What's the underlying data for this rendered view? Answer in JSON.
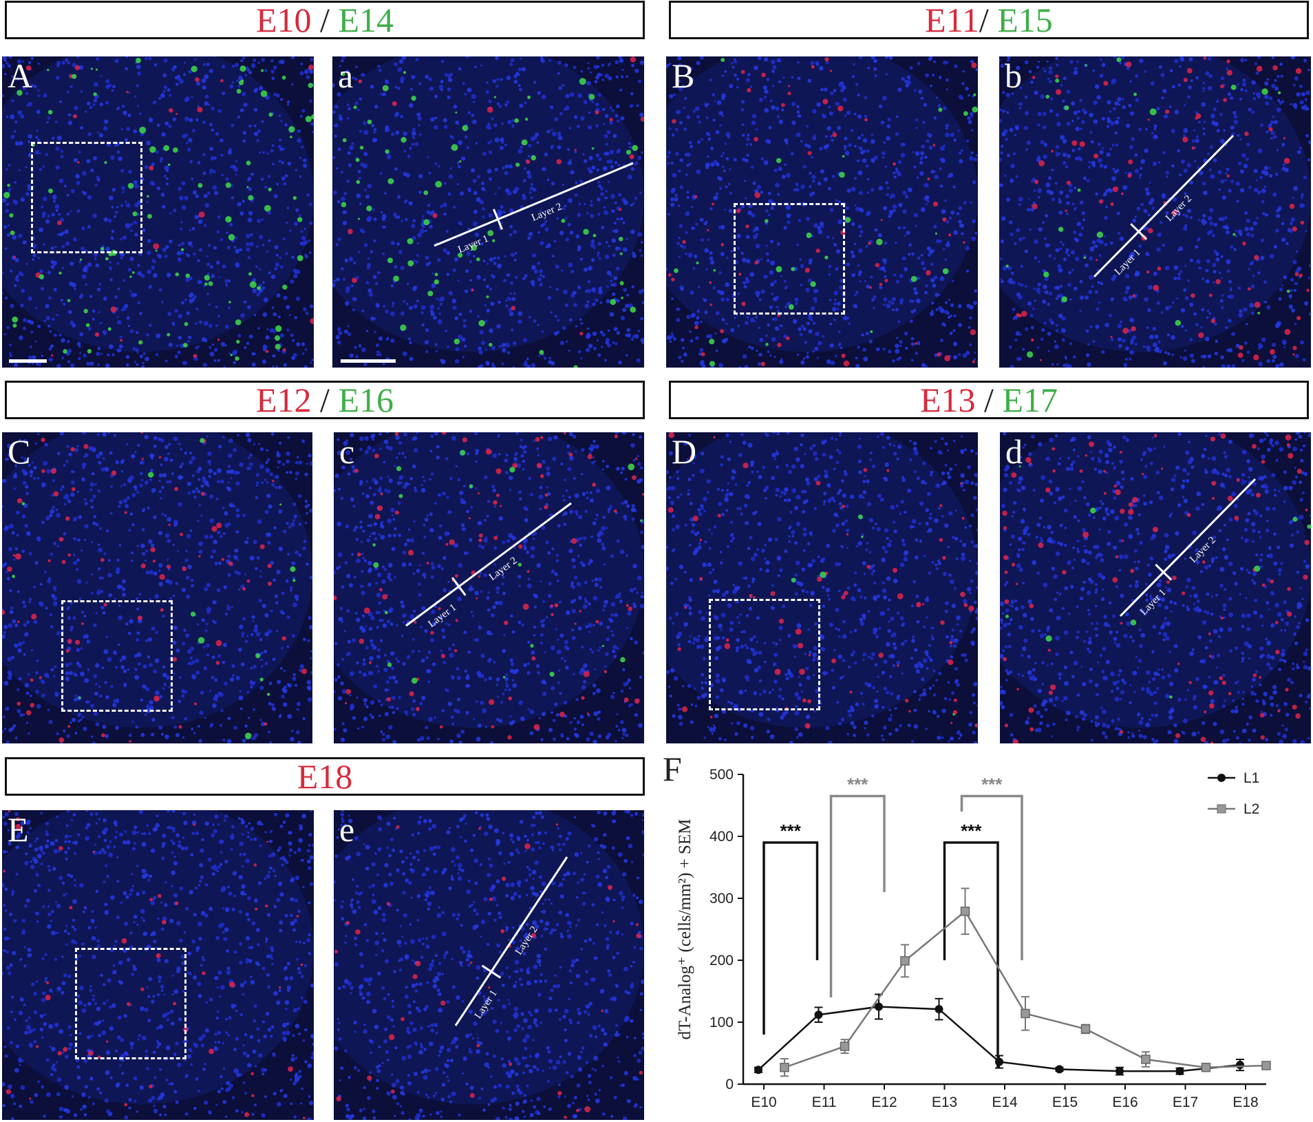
{
  "headers": [
    {
      "red": "E10",
      "sep": " / ",
      "green": "E14"
    },
    {
      "red": "E11",
      "sep": "/ ",
      "green": "E15"
    },
    {
      "red": "E12",
      "sep": " / ",
      "green": "E16"
    },
    {
      "red": "E13",
      "sep": " / ",
      "green": "E17"
    },
    {
      "red": "E18",
      "sep": "",
      "green": ""
    }
  ],
  "panels": [
    {
      "label": "A",
      "seed": 11,
      "green": 0.5,
      "red": 0.15
    },
    {
      "label": "a",
      "seed": 12,
      "green": 0.35,
      "red": 0.1
    },
    {
      "label": "B",
      "seed": 21,
      "green": 0.15,
      "red": 0.35
    },
    {
      "label": "b",
      "seed": 22,
      "green": 0.12,
      "red": 0.45
    },
    {
      "label": "C",
      "seed": 31,
      "green": 0.08,
      "red": 0.4
    },
    {
      "label": "c",
      "seed": 32,
      "green": 0.1,
      "red": 0.5
    },
    {
      "label": "D",
      "seed": 41,
      "green": 0.03,
      "red": 0.35
    },
    {
      "label": "d",
      "seed": 42,
      "green": 0.05,
      "red": 0.55
    },
    {
      "label": "E",
      "seed": 51,
      "green": 0.0,
      "red": 0.25
    },
    {
      "label": "e",
      "seed": 52,
      "green": 0.0,
      "red": 0.2
    }
  ],
  "layer_labels": {
    "l1": "Layer 1",
    "l2": "Layer 2"
  },
  "figure_label": "F",
  "chart_data": {
    "type": "line",
    "categories": [
      "E10",
      "E11",
      "E12",
      "E13",
      "E14",
      "E15",
      "E16",
      "E17",
      "E18"
    ],
    "ylabel": "dT-Analog⁺ (cells/mm²) + SEM",
    "ylim": [
      0,
      500
    ],
    "yticks": [
      0,
      100,
      200,
      300,
      400,
      500
    ],
    "legend_position": "top-right",
    "series": [
      {
        "name": "L1",
        "color": "#111111",
        "marker": "circle",
        "values": [
          23,
          112,
          125,
          121,
          36,
          24,
          21,
          21,
          31
        ],
        "errors": [
          4,
          12,
          20,
          17,
          10,
          3,
          6,
          5,
          9
        ]
      },
      {
        "name": "L2",
        "color": "#777777",
        "marker": "square",
        "values": [
          27,
          61,
          199,
          279,
          114,
          89,
          40,
          27,
          30
        ],
        "errors": [
          14,
          11,
          26,
          37,
          27,
          7,
          12,
          5,
          3
        ]
      }
    ],
    "annotations": [
      {
        "text": "***",
        "color": "#111111",
        "from": "E10",
        "to": "E11"
      },
      {
        "text": "***",
        "color": "#888888",
        "from": "E11",
        "to": "E12"
      },
      {
        "text": "***",
        "color": "#111111",
        "from": "E13",
        "to": "E14"
      },
      {
        "text": "***",
        "color": "#888888",
        "from": "E13",
        "to": "E14"
      }
    ]
  }
}
